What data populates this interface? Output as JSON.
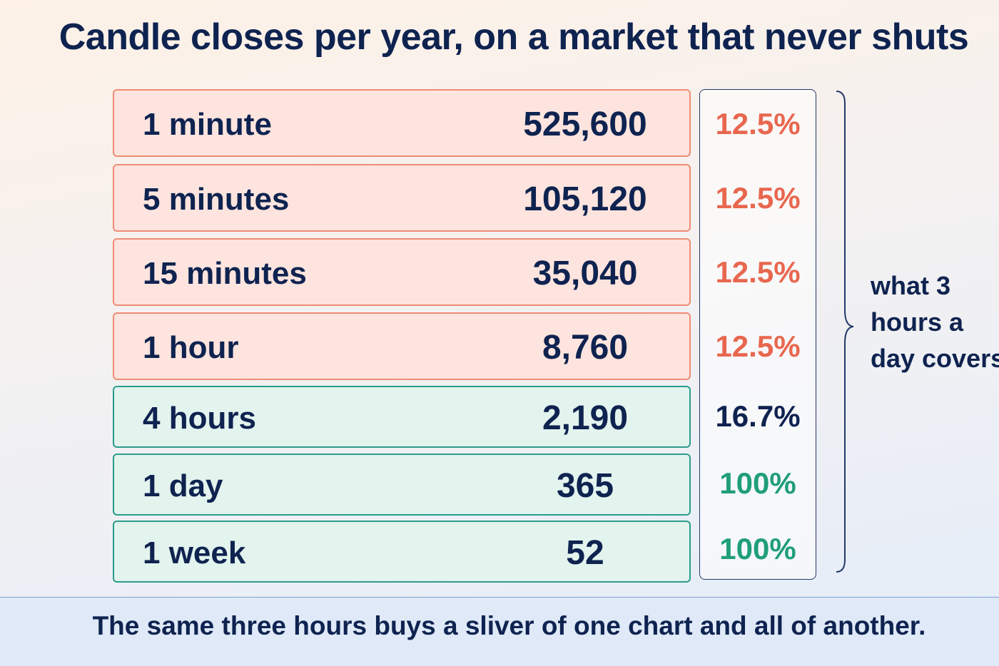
{
  "chart_data": {
    "type": "table",
    "title": "Candle closes per year, on a market that never shuts",
    "rows": [
      {
        "timeframe": "1 minute",
        "closes": "525,600",
        "share": "12.5%",
        "group": "red"
      },
      {
        "timeframe": "5 minutes",
        "closes": "105,120",
        "share": "12.5%",
        "group": "red"
      },
      {
        "timeframe": "15 minutes",
        "closes": "35,040",
        "share": "12.5%",
        "group": "red"
      },
      {
        "timeframe": "1 hour",
        "closes": "8,760",
        "share": "12.5%",
        "group": "red"
      },
      {
        "timeframe": "4 hours",
        "closes": "2,190",
        "share": "16.7%",
        "group": "green"
      },
      {
        "timeframe": "1 day",
        "closes": "365",
        "share": "100%",
        "group": "green"
      },
      {
        "timeframe": "1 week",
        "closes": "52",
        "share": "100%",
        "group": "green"
      }
    ],
    "share_note_lines": [
      "what 3",
      "hours a",
      "day covers"
    ],
    "footer": "The same three hours buys a sliver of one chart and all of another."
  },
  "colors": {
    "red_fill": "#fde4de",
    "red_border": "#ef8c74",
    "red_text": "#e8674f",
    "green_fill": "#e3f3ee",
    "green_border": "#2a9d8a",
    "green_text": "#1f9e7a",
    "neutral_text": "#0f2350"
  }
}
